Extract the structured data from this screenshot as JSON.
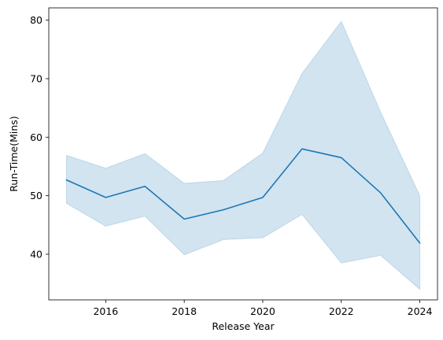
{
  "chart_data": {
    "type": "line",
    "title": "",
    "xlabel": "Release Year",
    "ylabel": "Run-Time(Mins)",
    "x": [
      2015,
      2016,
      2017,
      2018,
      2019,
      2020,
      2021,
      2022,
      2023,
      2024
    ],
    "series": [
      {
        "values": [
          52.7,
          49.7,
          51.6,
          46.0,
          47.6,
          49.7,
          58.0,
          56.5,
          50.5,
          41.9
        ],
        "ci_lower": [
          48.7,
          44.8,
          46.5,
          39.9,
          42.5,
          42.8,
          46.8,
          38.5,
          39.8,
          34.0
        ],
        "ci_upper": [
          56.9,
          54.7,
          57.2,
          52.1,
          52.6,
          57.3,
          70.9,
          79.8,
          64.3,
          50.0
        ],
        "color": "#1f77b4",
        "band_color": "#1f77b4"
      }
    ],
    "xlim": [
      2014.55,
      2024.45
    ],
    "ylim": [
      32.2,
      82.1
    ],
    "xticks": [
      2016,
      2018,
      2020,
      2022,
      2024
    ],
    "yticks": [
      40,
      50,
      60,
      70,
      80
    ],
    "grid": false,
    "legend": "none"
  }
}
